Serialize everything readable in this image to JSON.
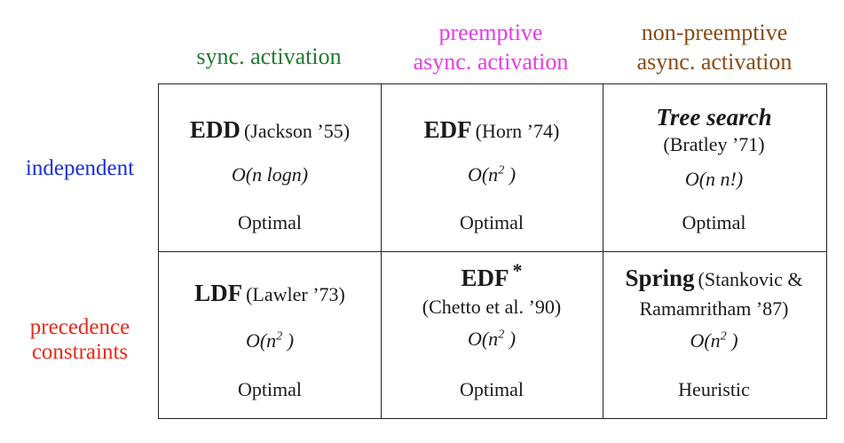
{
  "colors": {
    "sync": "#1f7a32",
    "preemptive": "#e63ce6",
    "nonpreemptive": "#8a4a14",
    "independent": "#1a2ee0",
    "precedence": "#e62a1a"
  },
  "columns": [
    {
      "lines": [
        "sync. activation"
      ]
    },
    {
      "lines": [
        "preemptive",
        "async. activation"
      ]
    },
    {
      "lines": [
        "non-preemptive",
        "async. activation"
      ]
    }
  ],
  "rows": [
    {
      "lines": [
        "independent"
      ]
    },
    {
      "lines": [
        "precedence",
        "constraints"
      ]
    }
  ],
  "cells": {
    "r0c0": {
      "algorithm": "EDD",
      "reference": "(Jackson ’55)",
      "complexity": "O(n logn)",
      "result": "Optimal"
    },
    "r0c1": {
      "algorithm": "EDF",
      "reference": "(Horn ’74)",
      "complexity_base": "O(n",
      "complexity_exp": "2",
      "complexity_end": " )",
      "result": "Optimal"
    },
    "r0c2": {
      "algorithm": "Tree search",
      "reference": "(Bratley ’71)",
      "complexity": "O(n n!)",
      "result": "Optimal"
    },
    "r1c0": {
      "algorithm": "LDF",
      "reference": "(Lawler ’73)",
      "complexity_base": "O(n",
      "complexity_exp": "2",
      "complexity_end": " )",
      "result": "Optimal"
    },
    "r1c1": {
      "algorithm": "EDF",
      "marker": "*",
      "reference": "(Chetto et al. ’90)",
      "complexity_base": "O(n",
      "complexity_exp": "2",
      "complexity_end": " )",
      "result": "Optimal"
    },
    "r1c2": {
      "algorithm": "Spring",
      "reference_1": "(Stankovic &",
      "reference_2": "Ramamritham ’87)",
      "complexity_base": "O(n",
      "complexity_exp": "2",
      "complexity_end": " )",
      "result": "Heuristic"
    }
  }
}
